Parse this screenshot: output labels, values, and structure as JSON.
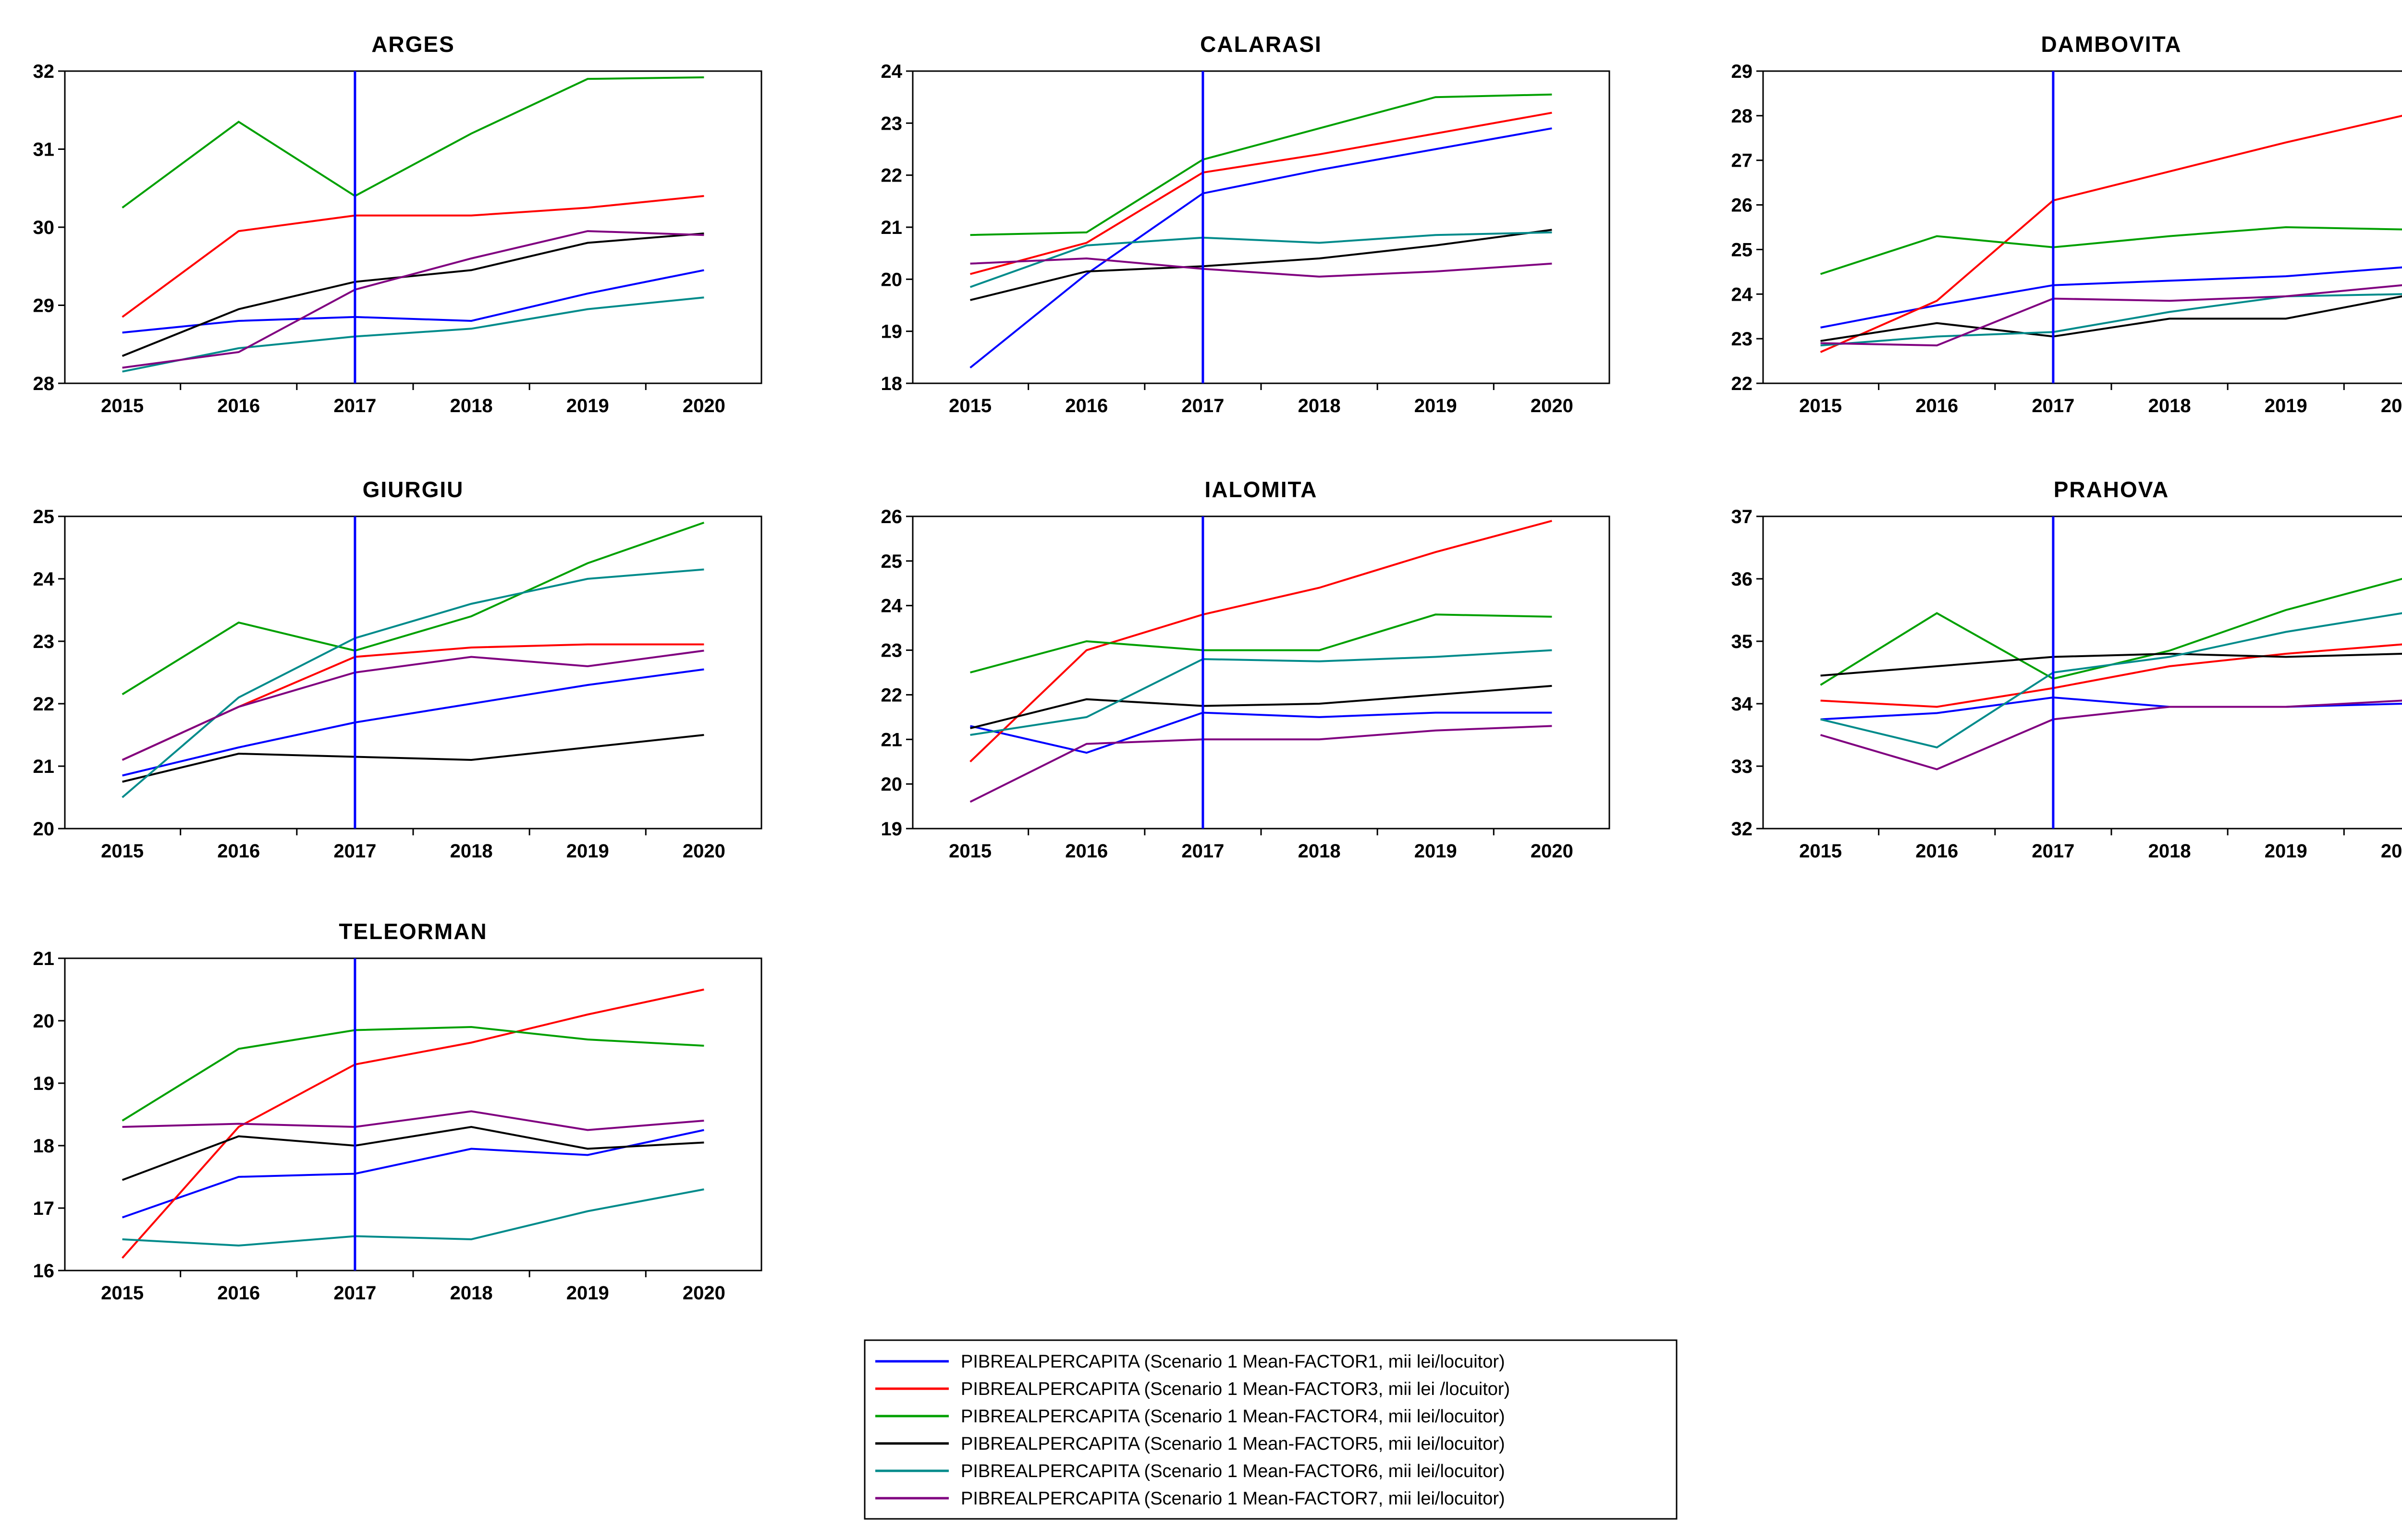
{
  "chart_data": {
    "type": "line",
    "x_ticks": [
      "2015",
      "2016",
      "2017",
      "2018",
      "2019",
      "2020"
    ],
    "reference_year": 2017,
    "reference_color": "#0000ff",
    "series": [
      {
        "name": "PIBREALPERCAPITA (Scenario 1 Mean-FACTOR1, mii lei/locuitor)",
        "color": "#0000ff"
      },
      {
        "name": "PIBREALPERCAPITA (Scenario 1 Mean-FACTOR3, mii lei /locuitor)",
        "color": "#ff0000"
      },
      {
        "name": "PIBREALPERCAPITA (Scenario 1 Mean-FACTOR4, mii lei/locuitor)",
        "color": "#00a000"
      },
      {
        "name": "PIBREALPERCAPITA (Scenario 1 Mean-FACTOR5, mii lei/locuitor)",
        "color": "#000000"
      },
      {
        "name": "PIBREALPERCAPITA (Scenario 1 Mean-FACTOR6, mii lei/locuitor)",
        "color": "#008b8b"
      },
      {
        "name": "PIBREALPERCAPITA (Scenario 1 Mean-FACTOR7, mii lei/locuitor)",
        "color": "#800080"
      }
    ],
    "panels": [
      {
        "title": "ARGES",
        "ylim": [
          28,
          32
        ],
        "yticks": [
          28,
          29,
          30,
          31,
          32
        ],
        "values": [
          [
            28.65,
            28.8,
            28.85,
            28.8,
            29.15,
            29.45
          ],
          [
            28.85,
            29.95,
            30.15,
            30.15,
            30.25,
            30.4
          ],
          [
            30.25,
            31.35,
            30.4,
            31.2,
            31.9,
            31.92
          ],
          [
            28.35,
            28.95,
            29.3,
            29.45,
            29.8,
            29.92
          ],
          [
            28.15,
            28.45,
            28.6,
            28.7,
            28.95,
            29.1
          ],
          [
            28.2,
            28.4,
            29.2,
            29.6,
            29.95,
            29.9
          ]
        ]
      },
      {
        "title": "CALARASI",
        "ylim": [
          18,
          24
        ],
        "yticks": [
          18,
          19,
          20,
          21,
          22,
          23,
          24
        ],
        "values": [
          [
            18.3,
            20.1,
            21.65,
            22.1,
            22.5,
            22.9
          ],
          [
            20.1,
            20.7,
            22.05,
            22.4,
            22.8,
            23.2
          ],
          [
            20.85,
            20.9,
            22.3,
            22.9,
            23.5,
            23.55
          ],
          [
            19.6,
            20.15,
            20.25,
            20.4,
            20.65,
            20.95
          ],
          [
            19.85,
            20.65,
            20.8,
            20.7,
            20.85,
            20.9
          ],
          [
            20.3,
            20.4,
            20.2,
            20.05,
            20.15,
            20.3
          ]
        ]
      },
      {
        "title": "DAMBOVITA",
        "ylim": [
          22,
          29
        ],
        "yticks": [
          22,
          23,
          24,
          25,
          26,
          27,
          28,
          29
        ],
        "values": [
          [
            23.25,
            23.75,
            24.2,
            24.3,
            24.4,
            24.6
          ],
          [
            22.7,
            23.85,
            26.1,
            26.75,
            27.4,
            28.0
          ],
          [
            24.45,
            25.3,
            25.05,
            25.3,
            25.5,
            25.45
          ],
          [
            22.95,
            23.35,
            23.05,
            23.45,
            23.45,
            23.95
          ],
          [
            22.85,
            23.05,
            23.15,
            23.6,
            23.95,
            24.0
          ],
          [
            22.9,
            22.85,
            23.9,
            23.85,
            23.95,
            24.2
          ]
        ]
      },
      {
        "title": "GIURGIU",
        "ylim": [
          20,
          25
        ],
        "yticks": [
          20,
          21,
          22,
          23,
          24,
          25
        ],
        "values": [
          [
            20.85,
            21.3,
            21.7,
            22.0,
            22.3,
            22.55
          ],
          [
            21.1,
            21.95,
            22.75,
            22.9,
            22.95,
            22.95
          ],
          [
            22.15,
            23.3,
            22.85,
            23.4,
            24.25,
            24.9
          ],
          [
            20.75,
            21.2,
            21.15,
            21.1,
            21.3,
            21.5
          ],
          [
            20.5,
            22.1,
            23.05,
            23.6,
            24.0,
            24.15
          ],
          [
            21.1,
            21.95,
            22.5,
            22.75,
            22.6,
            22.85
          ]
        ]
      },
      {
        "title": "IALOMITA",
        "ylim": [
          19,
          26
        ],
        "yticks": [
          19,
          20,
          21,
          22,
          23,
          24,
          25,
          26
        ],
        "values": [
          [
            21.3,
            20.7,
            21.6,
            21.5,
            21.6,
            21.6
          ],
          [
            20.5,
            23.0,
            23.8,
            24.4,
            25.2,
            25.9
          ],
          [
            22.5,
            23.2,
            23.0,
            23.0,
            23.8,
            23.75
          ],
          [
            21.25,
            21.9,
            21.75,
            21.8,
            22.0,
            22.2
          ],
          [
            21.1,
            21.5,
            22.8,
            22.75,
            22.85,
            23.0
          ],
          [
            19.6,
            20.9,
            21.0,
            21.0,
            21.2,
            21.3
          ]
        ]
      },
      {
        "title": "PRAHOVA",
        "ylim": [
          32,
          37
        ],
        "yticks": [
          32,
          33,
          34,
          35,
          36,
          37
        ],
        "values": [
          [
            33.75,
            33.85,
            34.1,
            33.95,
            33.95,
            34.0
          ],
          [
            34.05,
            33.95,
            34.25,
            34.6,
            34.8,
            34.95
          ],
          [
            34.3,
            35.45,
            34.4,
            34.85,
            35.5,
            36.0
          ],
          [
            34.45,
            34.6,
            34.75,
            34.8,
            34.75,
            34.8
          ],
          [
            33.75,
            33.3,
            34.5,
            34.75,
            35.15,
            35.45
          ],
          [
            33.5,
            32.95,
            33.75,
            33.95,
            33.95,
            34.05
          ]
        ]
      },
      {
        "title": "TELEORMAN",
        "ylim": [
          16,
          21
        ],
        "yticks": [
          16,
          17,
          18,
          19,
          20,
          21
        ],
        "values": [
          [
            16.85,
            17.5,
            17.55,
            17.95,
            17.85,
            18.25
          ],
          [
            16.2,
            18.3,
            19.3,
            19.65,
            20.1,
            20.5
          ],
          [
            18.4,
            19.55,
            19.85,
            19.9,
            19.7,
            19.6
          ],
          [
            17.45,
            18.15,
            18.0,
            18.3,
            17.95,
            18.05
          ],
          [
            16.5,
            16.4,
            16.55,
            16.5,
            16.95,
            17.3
          ],
          [
            18.3,
            18.35,
            18.3,
            18.55,
            18.25,
            18.4
          ]
        ]
      }
    ]
  }
}
